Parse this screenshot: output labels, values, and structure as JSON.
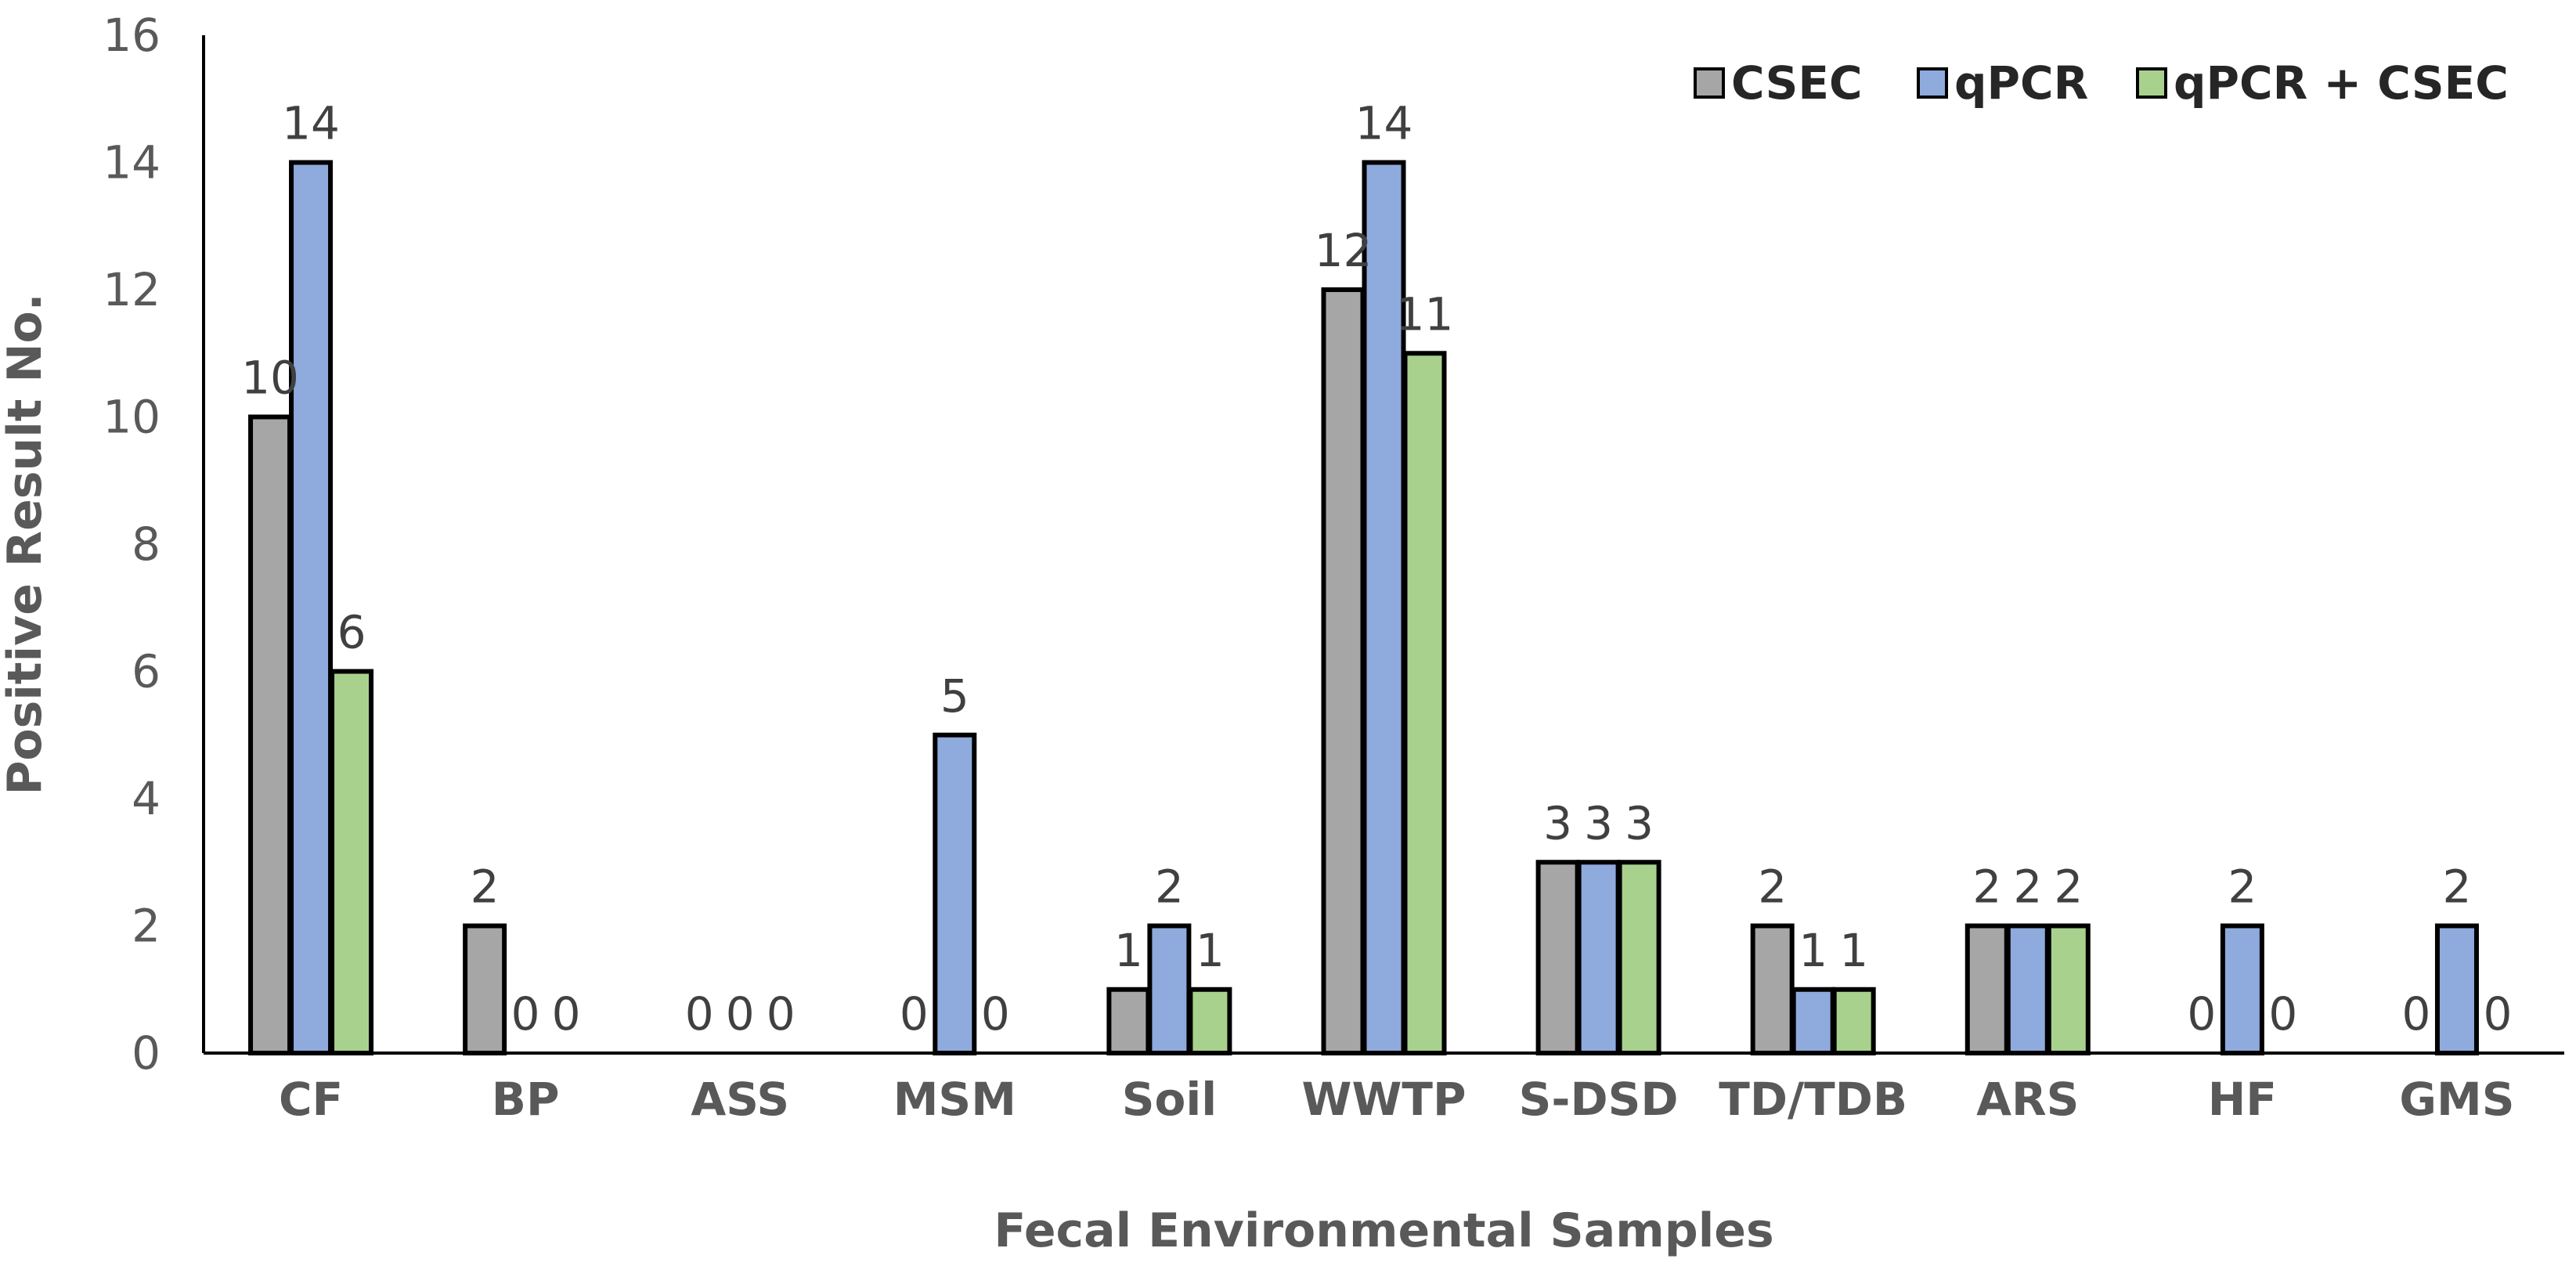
{
  "chart_data": {
    "type": "bar",
    "title": "",
    "xlabel": "Fecal Environmental Samples",
    "ylabel": "Positive Result No.",
    "ylim": [
      0,
      16
    ],
    "yticks": [
      "0",
      "2",
      "4",
      "6",
      "8",
      "10",
      "12",
      "14",
      "16"
    ],
    "legend_position": "top-right",
    "grid": false,
    "categories": [
      "CF",
      "BP",
      "ASS",
      "MSM",
      "Soil",
      "WWTP",
      "S-DSD",
      "TD/TDB",
      "ARS",
      "HF",
      "GMS"
    ],
    "series": [
      {
        "name": "CSEC",
        "color": "#a6a6a6",
        "values": [
          10,
          2,
          0,
          0,
          1,
          12,
          3,
          2,
          2,
          0,
          0
        ]
      },
      {
        "name": "qPCR",
        "color": "#8faadc",
        "values": [
          14,
          0,
          0,
          5,
          2,
          14,
          3,
          1,
          2,
          2,
          2
        ]
      },
      {
        "name": "qPCR + CSEC",
        "color": "#a9d18e",
        "values": [
          6,
          0,
          0,
          0,
          1,
          11,
          3,
          1,
          2,
          0,
          0
        ]
      }
    ]
  }
}
